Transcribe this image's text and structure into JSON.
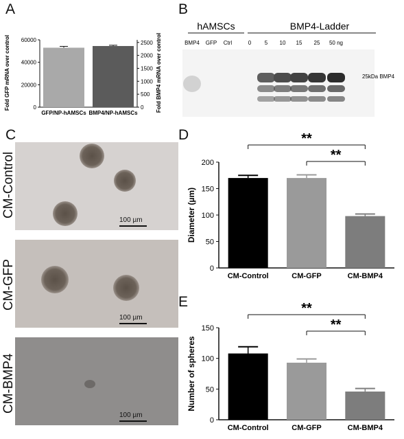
{
  "panels": {
    "A": {
      "letter": "A",
      "chart_data": {
        "type": "bar",
        "categories": [
          "GFP/NP-hAMSCs",
          "BMP4/NP-hAMSCs"
        ],
        "series": [
          {
            "values": [
              53000,
              54500
            ],
            "errors": [
              1200,
              700
            ]
          }
        ],
        "y_left_label": "Fold  GFP mRNA over control",
        "y_right_label": "Fold  BMP4 mRNA over control",
        "y_left_ticks": [
          "0",
          "20000",
          "40000",
          "60000"
        ],
        "y_right_ticks": [
          "0",
          "500",
          "1000",
          "1500",
          "2000",
          "2500"
        ],
        "ylim": [
          0,
          60000
        ],
        "colors": [
          "#a9a9a9",
          "#5b5b5b"
        ]
      }
    },
    "B": {
      "letter": "B",
      "group_left": "hAMSCs",
      "group_right": "BMP4-Ladder",
      "lanes": [
        "BMP4",
        "GFP",
        "Ctrl",
        "0",
        "5",
        "10",
        "15",
        "25",
        "50 ng"
      ],
      "band_label": "25kDa BMP4"
    },
    "C": {
      "letter": "C",
      "images": [
        {
          "label": "CM-Control",
          "scale": "100 µm",
          "spheres": 3
        },
        {
          "label": "CM-GFP",
          "scale": "100 µm",
          "spheres": 2
        },
        {
          "label": "CM-BMP4",
          "scale": "100 µm",
          "spheres": 1
        }
      ]
    },
    "D": {
      "letter": "D",
      "chart_data": {
        "type": "bar",
        "categories": [
          "CM-Control",
          "CM-GFP",
          "CM-BMP4"
        ],
        "values": [
          170,
          170,
          98
        ],
        "errors": [
          5,
          6,
          4
        ],
        "ylabel": "Diameter (µm)",
        "ylim": [
          0,
          200
        ],
        "yticks": [
          0,
          50,
          100,
          150,
          200
        ],
        "colors": [
          "#000000",
          "#9a9a9a",
          "#7d7d7d"
        ],
        "significance": [
          {
            "from": 0,
            "to": 2,
            "label": "**"
          },
          {
            "from": 1,
            "to": 2,
            "label": "**"
          }
        ]
      }
    },
    "E": {
      "letter": "E",
      "chart_data": {
        "type": "bar",
        "categories": [
          "CM-Control",
          "CM-GFP",
          "CM-BMP4"
        ],
        "values": [
          108,
          93,
          46
        ],
        "errors": [
          11,
          6,
          5
        ],
        "ylabel": "Number of spheres",
        "ylim": [
          0,
          150
        ],
        "yticks": [
          0,
          50,
          100,
          150
        ],
        "colors": [
          "#000000",
          "#9a9a9a",
          "#7d7d7d"
        ],
        "significance": [
          {
            "from": 0,
            "to": 2,
            "label": "**"
          },
          {
            "from": 1,
            "to": 2,
            "label": "**"
          }
        ]
      }
    }
  }
}
